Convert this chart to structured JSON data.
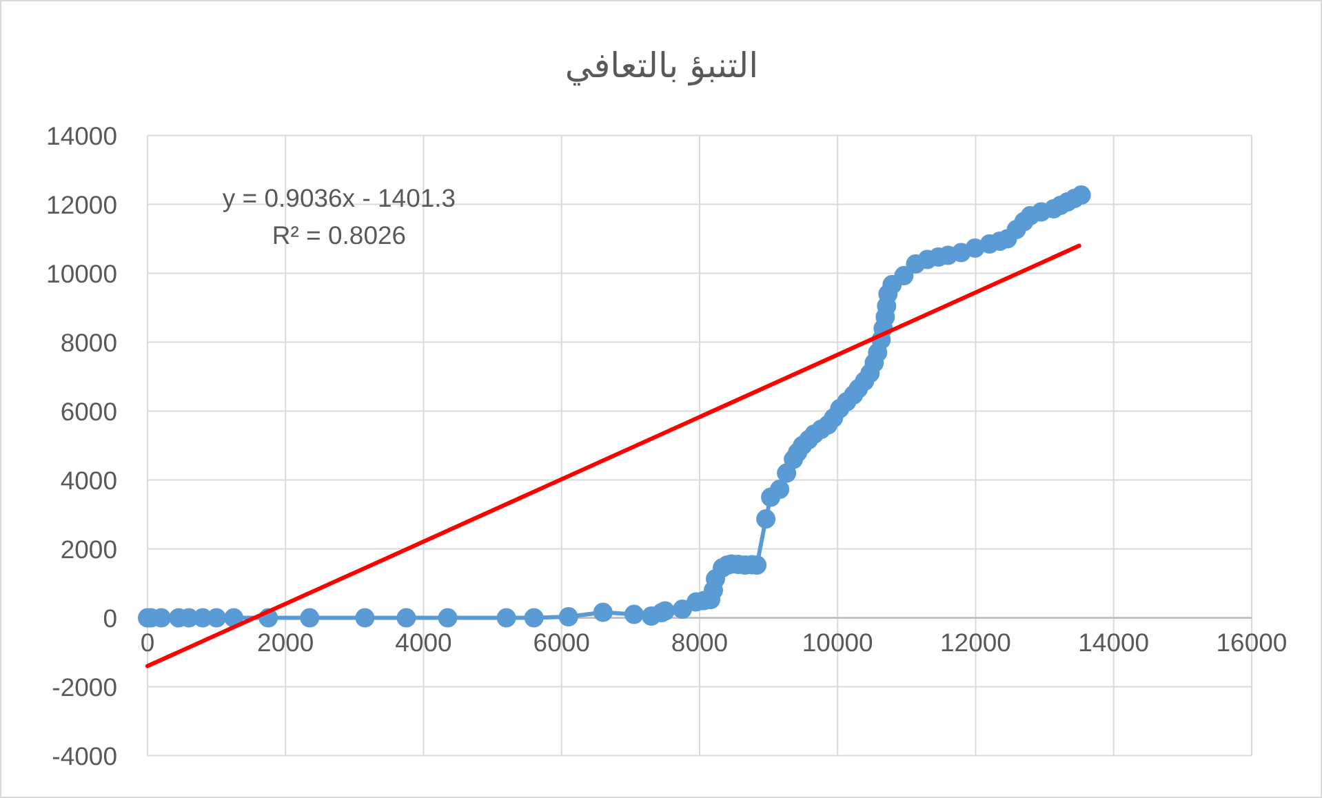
{
  "chart_data": {
    "type": "line",
    "title": "التنبؤ بالتعافي",
    "annotations": [
      "y = 0.9036x - 1401.3",
      "R² = 0.8026"
    ],
    "xlim": [
      0,
      16000
    ],
    "xticks": [
      0,
      2000,
      4000,
      6000,
      8000,
      10000,
      12000,
      14000,
      16000
    ],
    "ylim": [
      -4000,
      14000
    ],
    "yticks": [
      -4000,
      -2000,
      0,
      2000,
      4000,
      6000,
      8000,
      10000,
      12000,
      14000
    ],
    "grid": true,
    "marker": "circle",
    "line_style": "solid",
    "series": [
      {
        "color": "#5b9bd5",
        "x": [
          0,
          50,
          200,
          450,
          600,
          800,
          1000,
          1250,
          1750,
          2350,
          3150,
          3750,
          4350,
          5200,
          5600,
          6100,
          6600,
          7050,
          7300,
          7450,
          7500,
          7750,
          7950,
          8060,
          8160,
          8200,
          8230,
          8330,
          8400,
          8460,
          8560,
          8660,
          8760,
          8830,
          8960,
          9030,
          9160,
          9260,
          9360,
          9420,
          9490,
          9580,
          9660,
          9760,
          9860,
          9940,
          10030,
          10130,
          10230,
          10300,
          10390,
          10470,
          10530,
          10580,
          10630,
          10660,
          10690,
          10710,
          10730,
          10790,
          10960,
          11130,
          11300,
          11460,
          11600,
          11790,
          11990,
          12200,
          12350,
          12460,
          12590,
          12700,
          12790,
          12950,
          13130,
          13230,
          13330,
          13430,
          13530
        ],
        "values": [
          0,
          0,
          0,
          0,
          0,
          0,
          0,
          0,
          0,
          0,
          0,
          0,
          0,
          0,
          0,
          30,
          160,
          100,
          50,
          150,
          200,
          250,
          460,
          500,
          530,
          800,
          1130,
          1450,
          1530,
          1560,
          1550,
          1530,
          1540,
          1530,
          2870,
          3500,
          3730,
          4200,
          4600,
          4800,
          5000,
          5170,
          5330,
          5470,
          5600,
          5800,
          6070,
          6270,
          6470,
          6650,
          6870,
          7100,
          7400,
          7700,
          8070,
          8400,
          8730,
          9050,
          9400,
          9670,
          9930,
          10270,
          10400,
          10470,
          10520,
          10600,
          10730,
          10850,
          10930,
          11000,
          11270,
          11500,
          11670,
          11780,
          11870,
          11970,
          12070,
          12170,
          12270
        ]
      },
      {
        "type": "line",
        "color": "#ff0000",
        "marker": "none",
        "x": [
          0,
          13500
        ],
        "values": [
          -1400,
          10800
        ]
      }
    ]
  }
}
